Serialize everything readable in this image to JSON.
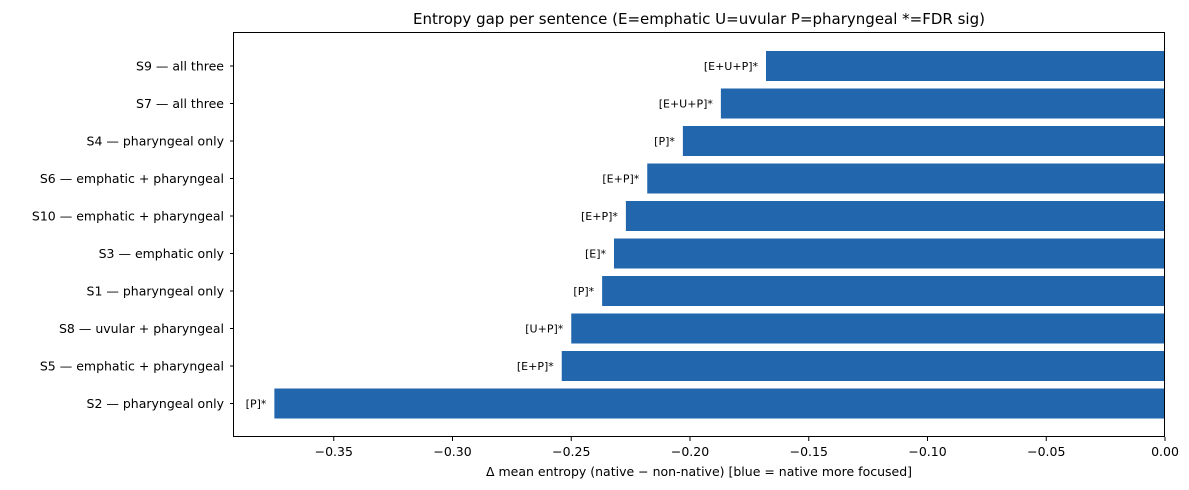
{
  "chart_data": {
    "type": "bar",
    "orientation": "horizontal",
    "title": "Entropy gap per sentence  (E=emphatic  U=uvular  P=pharyngeal  *=FDR sig)",
    "xlabel": "Δ mean entropy  (native − non-native)  [blue = native more focused]",
    "ylabel": "",
    "xlim": [
      -0.392,
      0.0
    ],
    "xticks": [
      -0.35,
      -0.3,
      -0.25,
      -0.2,
      -0.15,
      -0.1,
      -0.05,
      0.0
    ],
    "xtick_labels": [
      "−0.35",
      "−0.30",
      "−0.25",
      "−0.20",
      "−0.15",
      "−0.10",
      "−0.05",
      "0.00"
    ],
    "grid": false,
    "bar_color": "#2266ad",
    "categories": [
      "S9 — all three",
      "S7 — all three",
      "S4 — pharyngeal only",
      "S6 — emphatic + pharyngeal",
      "S10 — emphatic + pharyngeal",
      "S3 — emphatic only",
      "S1 — pharyngeal only",
      "S8 — uvular + pharyngeal",
      "S5 — emphatic + pharyngeal",
      "S2 — pharyngeal only"
    ],
    "values": [
      -0.168,
      -0.187,
      -0.203,
      -0.218,
      -0.227,
      -0.232,
      -0.237,
      -0.25,
      -0.254,
      -0.375
    ],
    "bar_labels": [
      "[E+U+P]*",
      "[E+U+P]*",
      "[P]*",
      "[E+P]*",
      "[E+P]*",
      "[E]*",
      "[P]*",
      "[U+P]*",
      "[E+P]*",
      "[P]*"
    ]
  }
}
